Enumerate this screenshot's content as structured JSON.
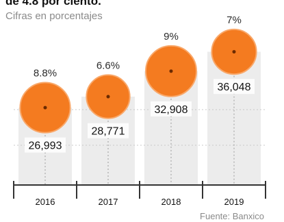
{
  "title": "de 4.8 por ciento.",
  "subtitle": "Cifras en porcentajes",
  "source": "Fuente: Banxico",
  "colors": {
    "bubble": "#f47b20",
    "bubble_edge": "#f9a86a",
    "dot": "#6b2a00",
    "column": "#ececec",
    "axis": "#333333"
  },
  "chart_data": {
    "type": "bubble",
    "categories": [
      "2016",
      "2017",
      "2018",
      "2019"
    ],
    "percent_labels": [
      "8.8%",
      "6.6%",
      "9%",
      "7%"
    ],
    "percent": [
      8.8,
      6.6,
      9,
      7
    ],
    "value_labels": [
      "26,993",
      "28,771",
      "32,908",
      "36,048"
    ],
    "values": [
      26993,
      28771,
      32908,
      36048
    ]
  }
}
